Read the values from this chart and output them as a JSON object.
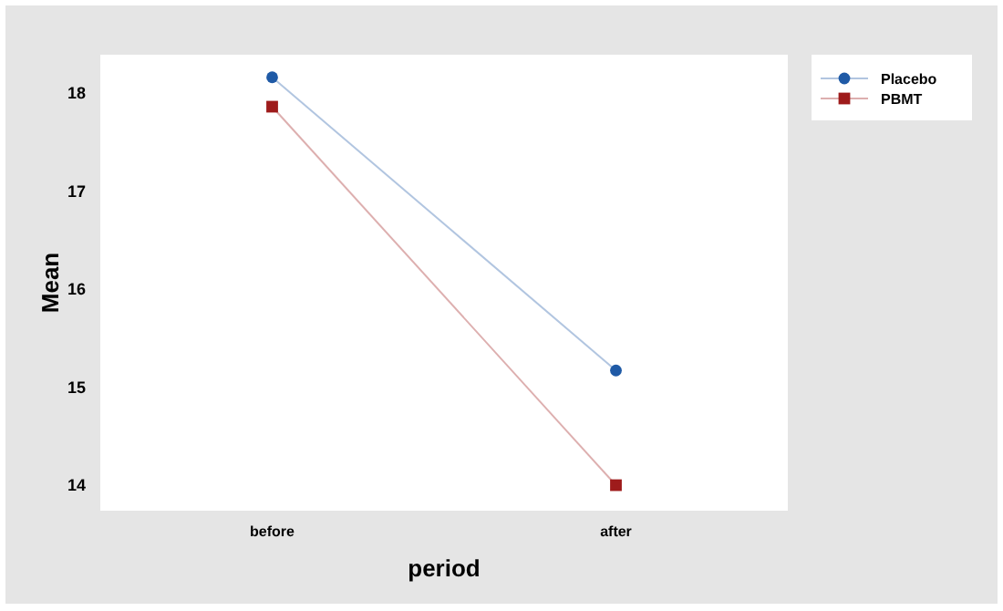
{
  "chart_data": {
    "type": "line",
    "xlabel": "period",
    "ylabel": "Mean",
    "categories": [
      "before",
      "after"
    ],
    "series": [
      {
        "name": "Placebo",
        "color": "#1f5aa6",
        "values": [
          18.16,
          15.17
        ],
        "marker": "circle"
      },
      {
        "name": "PBMT",
        "color": "#9e1b1b",
        "values": [
          17.86,
          14.0
        ],
        "marker": "square"
      }
    ],
    "ylim": [
      13.74,
      18.39
    ],
    "yticks": [
      14,
      15,
      16,
      17,
      18
    ],
    "grid": false,
    "legend": "right"
  }
}
